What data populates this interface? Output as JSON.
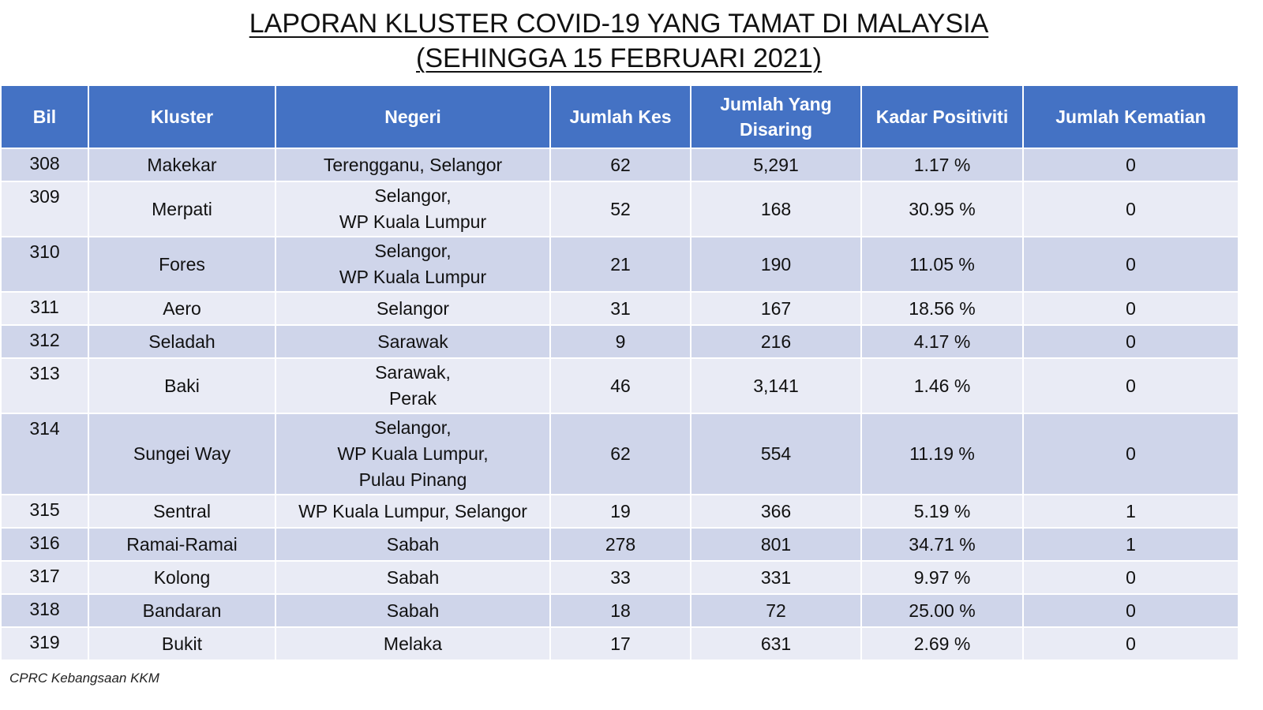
{
  "title": {
    "line1": "LAPORAN KLUSTER COVID-19 YANG TAMAT DI MALAYSIA",
    "line2": "(SEHINGGA 15 FEBRUARI 2021)"
  },
  "table": {
    "headers": [
      "Bil",
      "Kluster",
      "Negeri",
      "Jumlah Kes",
      "Jumlah Yang Disaring",
      "Kadar Positiviti",
      "Jumlah Kematian"
    ],
    "rows": [
      {
        "bil": "308",
        "kluster": "Makekar",
        "negeri": [
          "Terengganu, Selangor"
        ],
        "kes": "62",
        "disaring": "5,291",
        "positiviti": "1.17 %",
        "kematian": "0"
      },
      {
        "bil": "309",
        "kluster": "Merpati",
        "negeri": [
          "Selangor,",
          "WP Kuala Lumpur"
        ],
        "kes": "52",
        "disaring": "168",
        "positiviti": "30.95 %",
        "kematian": "0"
      },
      {
        "bil": "310",
        "kluster": "Fores",
        "negeri": [
          "Selangor,",
          "WP Kuala Lumpur"
        ],
        "kes": "21",
        "disaring": "190",
        "positiviti": "11.05 %",
        "kematian": "0"
      },
      {
        "bil": "311",
        "kluster": "Aero",
        "negeri": [
          "Selangor"
        ],
        "kes": "31",
        "disaring": "167",
        "positiviti": "18.56 %",
        "kematian": "0"
      },
      {
        "bil": "312",
        "kluster": "Seladah",
        "negeri": [
          "Sarawak"
        ],
        "kes": "9",
        "disaring": "216",
        "positiviti": "4.17 %",
        "kematian": "0"
      },
      {
        "bil": "313",
        "kluster": "Baki",
        "negeri": [
          "Sarawak,",
          "Perak"
        ],
        "kes": "46",
        "disaring": "3,141",
        "positiviti": "1.46 %",
        "kematian": "0"
      },
      {
        "bil": "314",
        "kluster": "Sungei Way",
        "negeri": [
          "Selangor,",
          "WP Kuala Lumpur,",
          "Pulau Pinang"
        ],
        "kes": "62",
        "disaring": "554",
        "positiviti": "11.19 %",
        "kematian": "0"
      },
      {
        "bil": "315",
        "kluster": "Sentral",
        "negeri": [
          "WP Kuala Lumpur, Selangor"
        ],
        "kes": "19",
        "disaring": "366",
        "positiviti": "5.19 %",
        "kematian": "1"
      },
      {
        "bil": "316",
        "kluster": "Ramai-Ramai",
        "negeri": [
          "Sabah"
        ],
        "kes": "278",
        "disaring": "801",
        "positiviti": "34.71 %",
        "kematian": "1"
      },
      {
        "bil": "317",
        "kluster": "Kolong",
        "negeri": [
          "Sabah"
        ],
        "kes": "33",
        "disaring": "331",
        "positiviti": "9.97 %",
        "kematian": "0"
      },
      {
        "bil": "318",
        "kluster": "Bandaran",
        "negeri": [
          "Sabah"
        ],
        "kes": "18",
        "disaring": "72",
        "positiviti": "25.00 %",
        "kematian": "0"
      },
      {
        "bil": "319",
        "kluster": "Bukit",
        "negeri": [
          "Melaka"
        ],
        "kes": "17",
        "disaring": "631",
        "positiviti": "2.69 %",
        "kematian": "0"
      }
    ]
  },
  "footer": {
    "source": "CPRC Kebangsaan KKM"
  },
  "colors": {
    "header_bg": "#4472c4",
    "row_odd_bg": "#cfd5ea",
    "row_even_bg": "#e9ebf5"
  }
}
